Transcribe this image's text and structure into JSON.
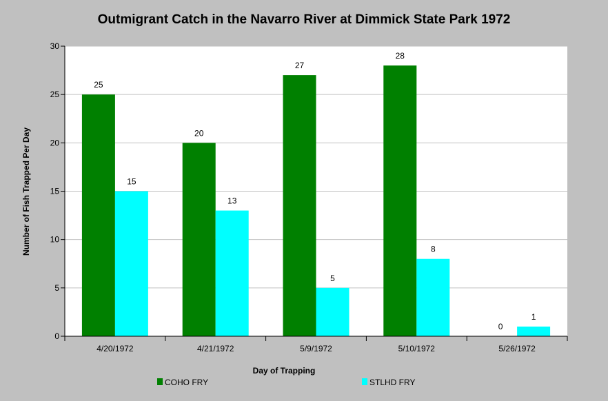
{
  "chart_data": {
    "type": "bar",
    "title": "Outmigrant Catch in the Navarro River at Dimmick State Park 1972",
    "xlabel": "Day of Trapping",
    "ylabel": "Number of Fish Trapped Per Day",
    "categories": [
      "4/20/1972",
      "4/21/1972",
      "5/9/1972",
      "5/10/1972",
      "5/26/1972"
    ],
    "series": [
      {
        "name": "COHO FRY",
        "color": "#008000",
        "values": [
          25,
          20,
          27,
          28,
          0
        ]
      },
      {
        "name": "STLHD FRY",
        "color": "#00ffff",
        "values": [
          15,
          13,
          5,
          8,
          1
        ]
      }
    ],
    "ylim": [
      0,
      30
    ],
    "yticks": [
      0,
      5,
      10,
      15,
      20,
      25,
      30
    ],
    "grid": true,
    "legend_position": "bottom",
    "colors": {
      "plot_background": "#ffffff",
      "page_background": "#c0c0c0",
      "grid": "#c0c0c0"
    }
  }
}
